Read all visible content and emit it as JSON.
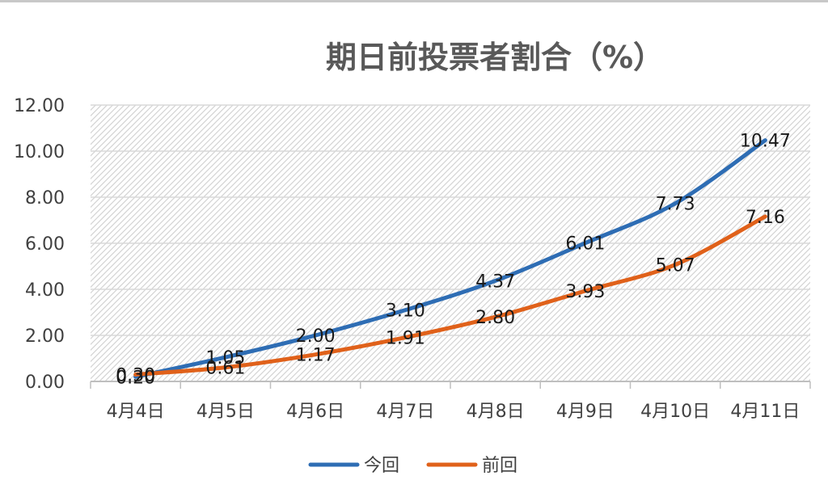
{
  "chart_data": {
    "type": "line",
    "title": "期日前投票者割合（%）",
    "xlabel": "",
    "ylabel": "",
    "categories": [
      "4月4日",
      "4月5日",
      "4月6日",
      "4月7日",
      "4月8日",
      "4月9日",
      "4月10日",
      "4月11日"
    ],
    "ylim": [
      0,
      12
    ],
    "yticks": [
      "0.00",
      "2.00",
      "4.00",
      "6.00",
      "8.00",
      "10.00",
      "12.00"
    ],
    "grid": true,
    "legend_position": "bottom",
    "series": [
      {
        "name": "今回",
        "color": "#2e6db4",
        "values": [
          0.2,
          1.05,
          2.0,
          3.1,
          4.37,
          6.01,
          7.73,
          10.47
        ],
        "labels": [
          "0.20",
          "1.05",
          "2.00",
          "3.10",
          "4.37",
          "6.01",
          "7.73",
          "10.47"
        ]
      },
      {
        "name": "前回",
        "color": "#e0611a",
        "values": [
          0.3,
          0.61,
          1.17,
          1.91,
          2.8,
          3.93,
          5.07,
          7.16
        ],
        "labels": [
          "0.30",
          "0.61",
          "1.17",
          "1.91",
          "2.80",
          "3.93",
          "5.07",
          "7.16"
        ]
      }
    ]
  }
}
